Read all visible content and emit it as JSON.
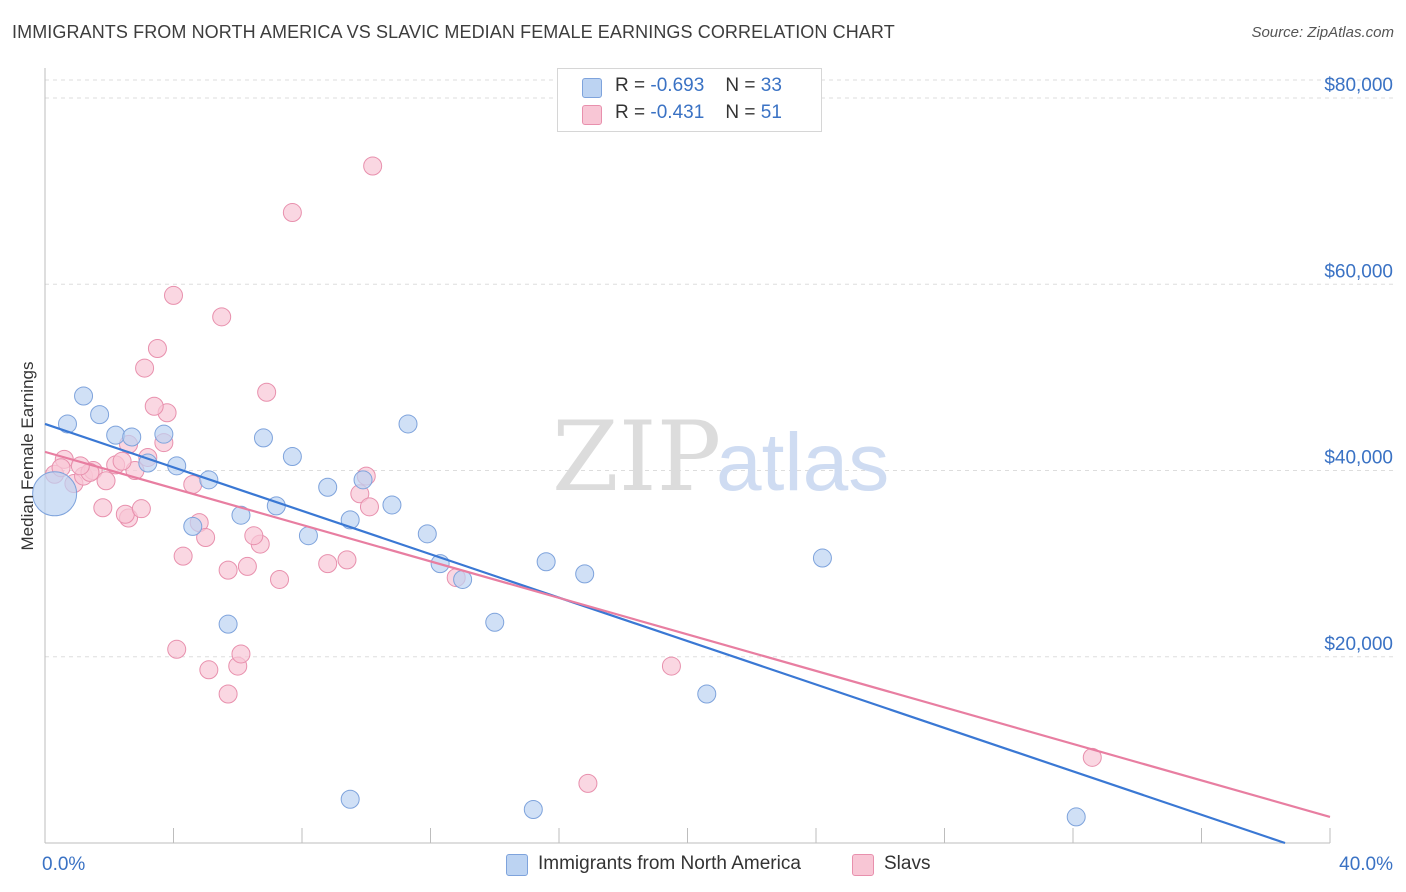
{
  "title": "IMMIGRANTS FROM NORTH AMERICA VS SLAVIC MEDIAN FEMALE EARNINGS CORRELATION CHART",
  "source": "Source: ZipAtlas.com",
  "watermark": {
    "zip": "ZIP",
    "atlas": "atlas"
  },
  "stats": [
    {
      "r_label": "R =",
      "r_value": "-0.693",
      "n_label": "N =",
      "n_value": "33",
      "color": "#a9c6ef"
    },
    {
      "r_label": "R =",
      "r_value": "-0.431",
      "n_label": "N =",
      "n_value": "51",
      "color": "#f6b6c9"
    }
  ],
  "legend": [
    {
      "label": "Immigrants from North America",
      "color": "#a9c6ef"
    },
    {
      "label": "Slavs",
      "color": "#f6b6c9"
    }
  ],
  "colors": {
    "blue_line": "#3a78d4",
    "pink_line": "#e87ea1",
    "blue_fill": "#bcd3f2",
    "pink_fill": "#f8c6d5",
    "axis_text": "#3a72c4",
    "grid": "#dddddd"
  },
  "chart_data": {
    "type": "scatter",
    "title": "IMMIGRANTS FROM NORTH AMERICA VS SLAVIC MEDIAN FEMALE EARNINGS CORRELATION CHART",
    "xlabel": "",
    "ylabel": "Median Female Earnings",
    "xlim": [
      0,
      40
    ],
    "ylim": [
      0,
      80000
    ],
    "x_tick_labels": [
      "0.0%",
      "40.0%"
    ],
    "y_ticks": [
      20000,
      40000,
      60000,
      80000
    ],
    "y_tick_labels": [
      "$20,000",
      "$40,000",
      "$60,000",
      "$80,000"
    ],
    "grid": true,
    "legend_position": "bottom",
    "series": [
      {
        "name": "Immigrants from North America",
        "trend": {
          "x": [
            0,
            38.6
          ],
          "y": [
            45000,
            0
          ]
        },
        "points": [
          [
            0.3,
            37500
          ],
          [
            0.7,
            45000
          ],
          [
            1.2,
            48000
          ],
          [
            1.7,
            46000
          ],
          [
            2.2,
            43800
          ],
          [
            2.7,
            43600
          ],
          [
            3.2,
            40800
          ],
          [
            3.7,
            43900
          ],
          [
            4.1,
            40500
          ],
          [
            4.6,
            34000
          ],
          [
            5.1,
            39000
          ],
          [
            5.7,
            23500
          ],
          [
            6.1,
            35200
          ],
          [
            6.8,
            43500
          ],
          [
            7.2,
            36200
          ],
          [
            7.7,
            41500
          ],
          [
            8.2,
            33000
          ],
          [
            8.8,
            38200
          ],
          [
            9.5,
            34700
          ],
          [
            9.9,
            39000
          ],
          [
            10.8,
            36300
          ],
          [
            11.3,
            45000
          ],
          [
            11.9,
            33200
          ],
          [
            12.3,
            30000
          ],
          [
            13.0,
            28300
          ],
          [
            14.0,
            23700
          ],
          [
            15.6,
            30200
          ],
          [
            16.8,
            28900
          ],
          [
            20.6,
            16000
          ],
          [
            24.2,
            30600
          ],
          [
            9.5,
            4700
          ],
          [
            15.2,
            3600
          ],
          [
            32.1,
            2800
          ]
        ]
      },
      {
        "name": "Slavs",
        "trend": {
          "x": [
            0,
            40
          ],
          "y": [
            42000,
            2800
          ]
        },
        "points": [
          [
            0.3,
            39600
          ],
          [
            0.6,
            41200
          ],
          [
            0.9,
            38600
          ],
          [
            1.2,
            39400
          ],
          [
            1.5,
            40000
          ],
          [
            1.9,
            38900
          ],
          [
            2.2,
            40600
          ],
          [
            2.6,
            34900
          ],
          [
            1.8,
            36000
          ],
          [
            2.5,
            35300
          ],
          [
            2.6,
            42800
          ],
          [
            3.0,
            35900
          ],
          [
            3.2,
            41400
          ],
          [
            2.8,
            40000
          ],
          [
            3.8,
            46200
          ],
          [
            3.1,
            51000
          ],
          [
            3.4,
            46900
          ],
          [
            3.5,
            53100
          ],
          [
            4.0,
            58800
          ],
          [
            4.3,
            30800
          ],
          [
            4.6,
            38500
          ],
          [
            4.8,
            34400
          ],
          [
            5.0,
            32800
          ],
          [
            5.7,
            29300
          ],
          [
            5.5,
            56500
          ],
          [
            6.0,
            19000
          ],
          [
            6.1,
            20300
          ],
          [
            6.3,
            29700
          ],
          [
            6.7,
            32100
          ],
          [
            6.9,
            48400
          ],
          [
            7.3,
            28300
          ],
          [
            7.7,
            67700
          ],
          [
            8.8,
            30000
          ],
          [
            9.4,
            30400
          ],
          [
            9.8,
            37500
          ],
          [
            10.0,
            39400
          ],
          [
            10.2,
            72700
          ],
          [
            10.1,
            36100
          ],
          [
            12.8,
            28500
          ],
          [
            4.1,
            20800
          ],
          [
            5.1,
            18600
          ],
          [
            5.7,
            16000
          ],
          [
            16.9,
            6400
          ],
          [
            19.5,
            19000
          ],
          [
            32.6,
            9200
          ],
          [
            6.5,
            33000
          ],
          [
            3.7,
            43000
          ],
          [
            1.4,
            39800
          ],
          [
            2.4,
            41000
          ],
          [
            0.5,
            40300
          ],
          [
            1.1,
            40500
          ]
        ]
      }
    ]
  }
}
